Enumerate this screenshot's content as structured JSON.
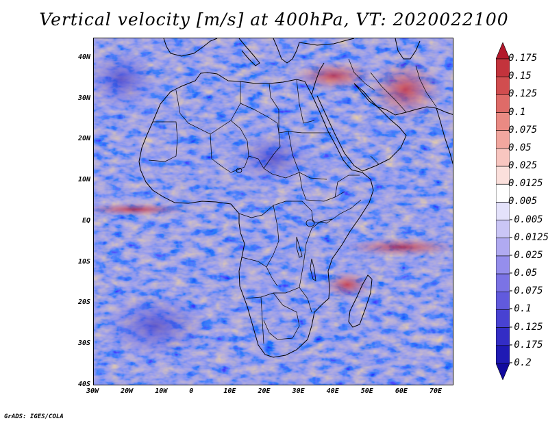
{
  "title": "Vertical velocity [m/s] at 400hPa, VT: 2020022100",
  "footer": "GrADS: IGES/COLA",
  "map": {
    "region": "Africa",
    "lat_labels": [
      "40N",
      "30N",
      "20N",
      "10N",
      "EQ",
      "10S",
      "20S",
      "30S",
      "40S"
    ],
    "lon_labels": [
      "30W",
      "20W",
      "10W",
      "0",
      "10E",
      "20E",
      "30E",
      "40E",
      "50E",
      "60E",
      "70E"
    ],
    "lat_range": [
      -40,
      45
    ],
    "lon_range": [
      -30,
      75
    ]
  },
  "colorbar": {
    "labels": [
      "0.175",
      "0.15",
      "0.125",
      "0.1",
      "0.075",
      "0.05",
      "0.025",
      "0.0125",
      "0.005",
      "-0.005",
      "-0.0125",
      "-0.025",
      "-0.05",
      "-0.075",
      "-0.1",
      "-0.125",
      "-0.175",
      "-0.2"
    ],
    "colors": [
      "#b2182b",
      "#c3333c",
      "#d14d4f",
      "#df6b68",
      "#ea8a83",
      "#f2a79f",
      "#f8c6c0",
      "#fbe0dc",
      "#ffffff",
      "#e4e2fb",
      "#cac6f6",
      "#b0aaf1",
      "#958eec",
      "#7b73e5",
      "#615add",
      "#4842d2",
      "#332dc5",
      "#1f1ab4",
      "#120a9e"
    ]
  },
  "colors": {
    "land_outline": "#000000",
    "background": "#ffffff"
  }
}
